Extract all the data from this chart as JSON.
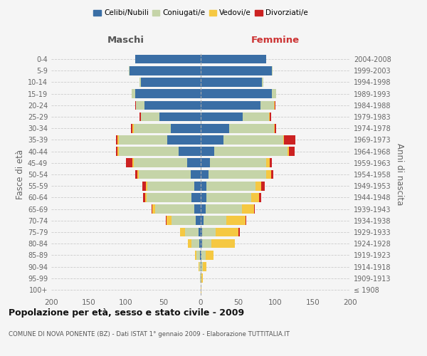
{
  "age_groups": [
    "100+",
    "95-99",
    "90-94",
    "85-89",
    "80-84",
    "75-79",
    "70-74",
    "65-69",
    "60-64",
    "55-59",
    "50-54",
    "45-49",
    "40-44",
    "35-39",
    "30-34",
    "25-29",
    "20-24",
    "15-19",
    "10-14",
    "5-9",
    "0-4"
  ],
  "birth_years": [
    "≤ 1908",
    "1909-1913",
    "1914-1918",
    "1919-1923",
    "1924-1928",
    "1929-1933",
    "1934-1938",
    "1939-1943",
    "1944-1948",
    "1949-1953",
    "1954-1958",
    "1959-1963",
    "1964-1968",
    "1969-1973",
    "1974-1978",
    "1979-1983",
    "1984-1988",
    "1989-1993",
    "1994-1998",
    "1999-2003",
    "2004-2008"
  ],
  "colors": {
    "celibi": "#3a6ea5",
    "coniugati": "#c5d4a8",
    "vedovi": "#f5c842",
    "divorziati": "#cc2222"
  },
  "males": {
    "celibi": [
      0,
      0,
      0,
      1,
      2,
      3,
      7,
      9,
      12,
      9,
      13,
      18,
      30,
      45,
      40,
      55,
      75,
      88,
      80,
      95,
      88
    ],
    "coniugati": [
      0,
      1,
      2,
      5,
      10,
      18,
      32,
      52,
      60,
      62,
      70,
      72,
      80,
      65,
      50,
      25,
      12,
      4,
      2,
      1,
      0
    ],
    "vedovi": [
      0,
      0,
      1,
      2,
      5,
      7,
      7,
      4,
      2,
      2,
      2,
      1,
      1,
      1,
      1,
      0,
      0,
      0,
      0,
      0,
      0
    ],
    "divorziati": [
      0,
      0,
      0,
      0,
      0,
      0,
      1,
      1,
      3,
      5,
      3,
      9,
      2,
      2,
      2,
      2,
      1,
      0,
      0,
      0,
      0
    ]
  },
  "females": {
    "celibi": [
      0,
      0,
      1,
      1,
      2,
      2,
      4,
      7,
      8,
      8,
      10,
      12,
      18,
      30,
      38,
      56,
      80,
      95,
      82,
      95,
      88
    ],
    "coniugati": [
      0,
      1,
      2,
      6,
      12,
      18,
      30,
      48,
      60,
      65,
      78,
      76,
      98,
      80,
      60,
      35,
      18,
      6,
      2,
      1,
      0
    ],
    "vedovi": [
      1,
      2,
      5,
      10,
      32,
      30,
      26,
      16,
      10,
      8,
      6,
      4,
      2,
      1,
      1,
      1,
      1,
      0,
      0,
      0,
      0
    ],
    "divorziati": [
      0,
      0,
      0,
      0,
      0,
      2,
      1,
      1,
      3,
      5,
      3,
      3,
      8,
      16,
      2,
      2,
      1,
      0,
      0,
      0,
      0
    ]
  },
  "title": "Popolazione per età, sesso e stato civile - 2009",
  "subtitle": "COMUNE DI NOVA PONENTE (BZ) - Dati ISTAT 1° gennaio 2009 - Elaborazione TUTTITALIA.IT",
  "maschi_label": "Maschi",
  "femmine_label": "Femmine",
  "ylabel_left": "Fasce di età",
  "ylabel_right": "Anni di nascita",
  "xlim": 200,
  "legend_labels": [
    "Celibi/Nubili",
    "Coniugati/e",
    "Vedovi/e",
    "Divorziati/e"
  ],
  "bg_color": "#f5f5f5",
  "grid_color": "#cccccc"
}
